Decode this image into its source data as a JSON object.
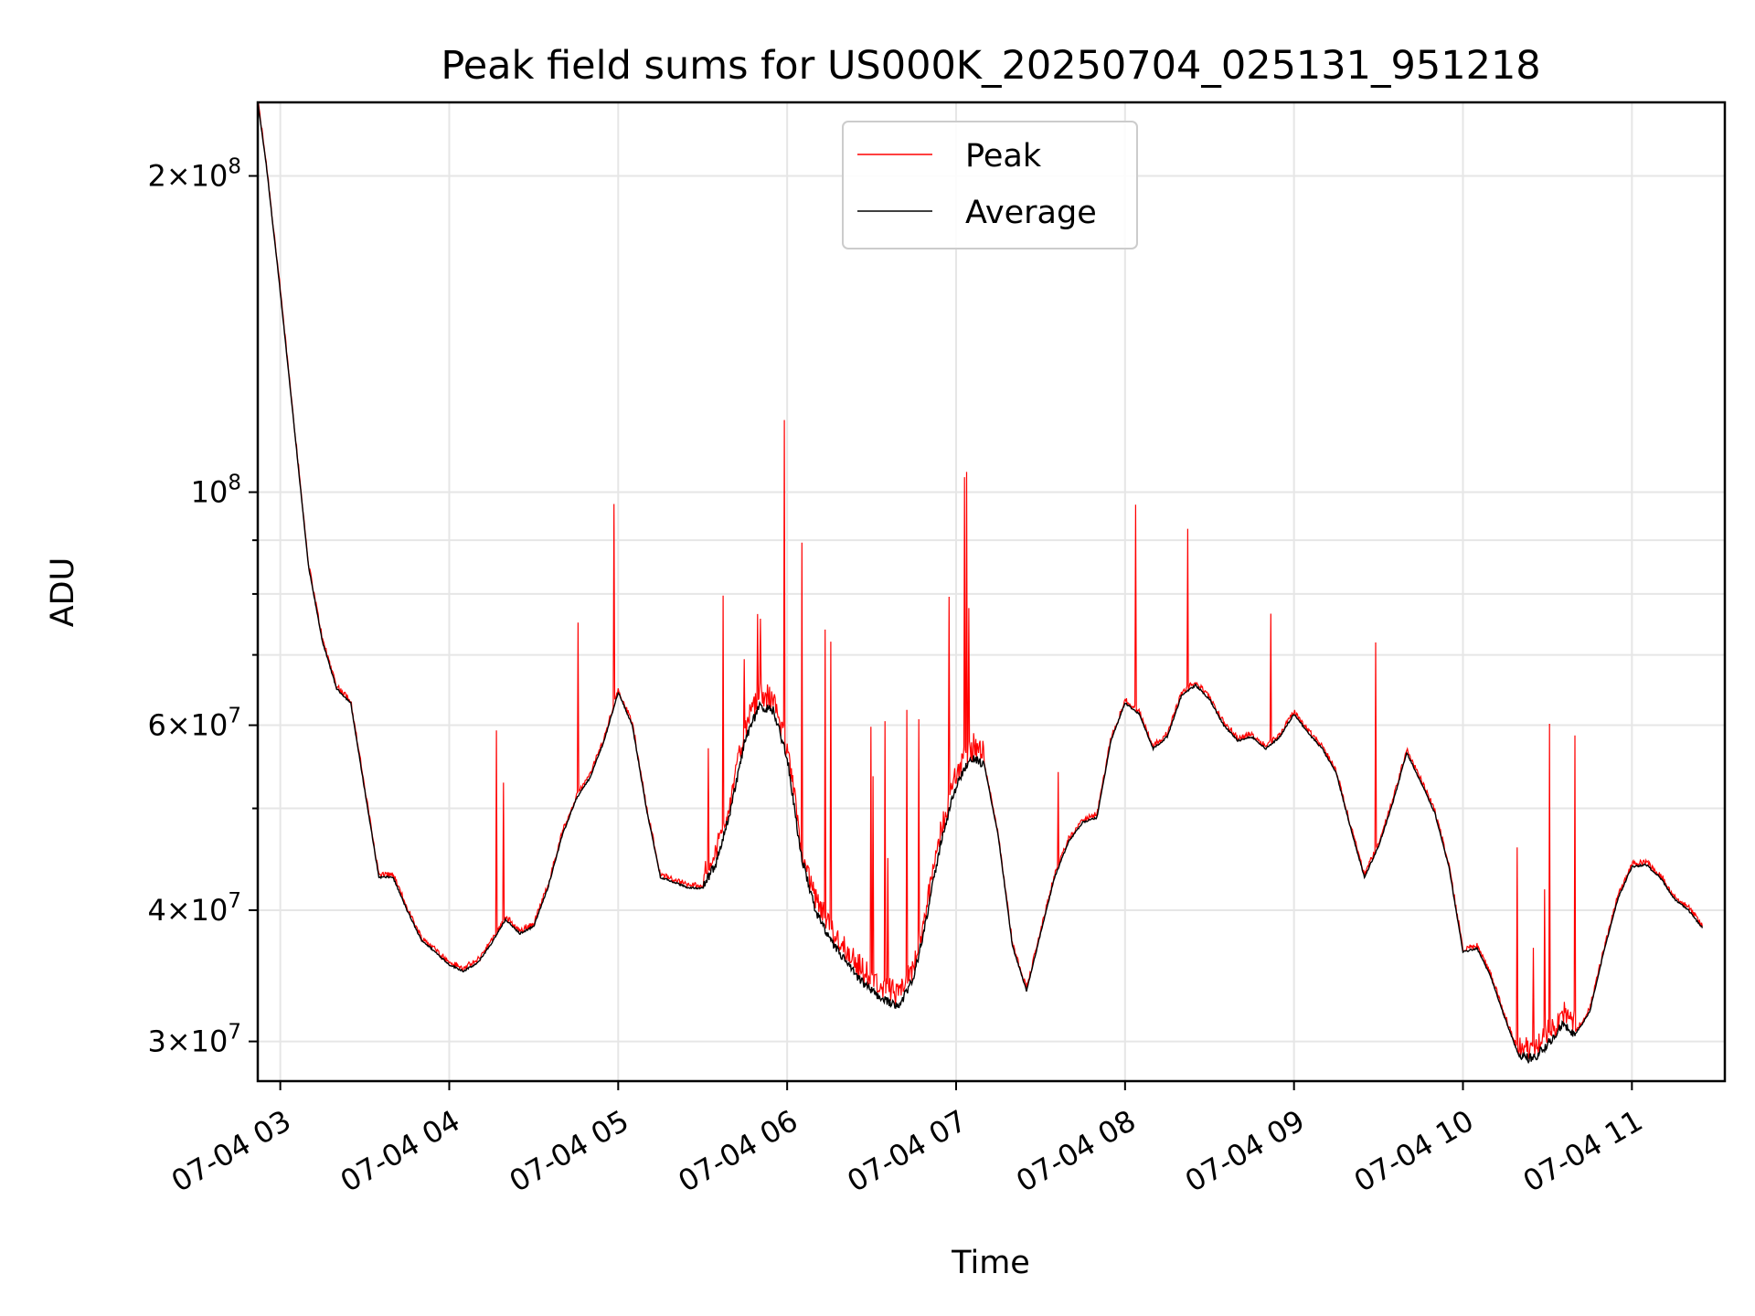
{
  "chart_data": {
    "type": "line",
    "title": "Peak field sums for US000K_20250704_025131_951218",
    "xlabel": "Time",
    "ylabel": "ADU",
    "y_scale": "log",
    "ylim": [
      27500000,
      235000000
    ],
    "x_range": [
      "07-04 02:52",
      "07-04 11:33"
    ],
    "x_ticks": [
      "07-04 03",
      "07-04 04",
      "07-04 05",
      "07-04 06",
      "07-04 07",
      "07-04 08",
      "07-04 09",
      "07-04 10",
      "07-04 11"
    ],
    "y_ticks": [
      {
        "value": 30000000,
        "mant": "3",
        "exp": "7"
      },
      {
        "value": 40000000,
        "mant": "4",
        "exp": "7"
      },
      {
        "value": 60000000,
        "mant": "6",
        "exp": "7"
      },
      {
        "value": 100000000,
        "mant": "",
        "exp": "8"
      },
      {
        "value": 200000000,
        "mant": "2",
        "exp": "8"
      }
    ],
    "grid": true,
    "legend_position": "top-center",
    "series": [
      {
        "name": "Average",
        "color": "#000000",
        "points": [
          [
            "07-04 02:52",
            235000000
          ],
          [
            "07-04 02:55",
            205000000
          ],
          [
            "07-04 03:00",
            155000000
          ],
          [
            "07-04 03:05",
            115000000
          ],
          [
            "07-04 03:10",
            85000000
          ],
          [
            "07-04 03:15",
            72000000
          ],
          [
            "07-04 03:20",
            65000000
          ],
          [
            "07-04 03:25",
            63000000
          ],
          [
            "07-04 03:30",
            52000000
          ],
          [
            "07-04 03:35",
            43000000
          ],
          [
            "07-04 03:40",
            43000000
          ],
          [
            "07-04 03:45",
            40000000
          ],
          [
            "07-04 03:50",
            37500000
          ],
          [
            "07-04 03:55",
            36500000
          ],
          [
            "07-04 04:00",
            35500000
          ],
          [
            "07-04 04:05",
            35000000
          ],
          [
            "07-04 04:10",
            35600000
          ],
          [
            "07-04 04:15",
            37200000
          ],
          [
            "07-04 04:20",
            39200000
          ],
          [
            "07-04 04:25",
            38000000
          ],
          [
            "07-04 04:30",
            38600000
          ],
          [
            "07-04 04:35",
            42000000
          ],
          [
            "07-04 04:40",
            47000000
          ],
          [
            "07-04 04:45",
            51000000
          ],
          [
            "07-04 04:50",
            53500000
          ],
          [
            "07-04 04:55",
            58000000
          ],
          [
            "07-04 05:00",
            64500000
          ],
          [
            "07-04 05:05",
            60000000
          ],
          [
            "07-04 05:10",
            50000000
          ],
          [
            "07-04 05:15",
            43000000
          ],
          [
            "07-04 05:20",
            42500000
          ],
          [
            "07-04 05:25",
            42000000
          ],
          [
            "07-04 05:30",
            42000000
          ],
          [
            "07-04 05:35",
            44500000
          ],
          [
            "07-04 05:40",
            50000000
          ],
          [
            "07-04 05:45",
            58000000
          ],
          [
            "07-04 05:50",
            62500000
          ],
          [
            "07-04 05:55",
            62000000
          ],
          [
            "07-04 06:00",
            56000000
          ],
          [
            "07-04 06:05",
            45000000
          ],
          [
            "07-04 06:10",
            40000000
          ],
          [
            "07-04 06:15",
            37500000
          ],
          [
            "07-04 06:20",
            36000000
          ],
          [
            "07-04 06:25",
            34500000
          ],
          [
            "07-04 06:30",
            33500000
          ],
          [
            "07-04 06:35",
            32800000
          ],
          [
            "07-04 06:40",
            32500000
          ],
          [
            "07-04 06:45",
            34500000
          ],
          [
            "07-04 06:50",
            40000000
          ],
          [
            "07-04 06:55",
            47000000
          ],
          [
            "07-04 07:00",
            52500000
          ],
          [
            "07-04 07:05",
            56000000
          ],
          [
            "07-04 07:10",
            55000000
          ],
          [
            "07-04 07:15",
            47000000
          ],
          [
            "07-04 07:20",
            37000000
          ],
          [
            "07-04 07:25",
            33500000
          ],
          [
            "07-04 07:30",
            38000000
          ],
          [
            "07-04 07:35",
            43000000
          ],
          [
            "07-04 07:40",
            46500000
          ],
          [
            "07-04 07:45",
            48500000
          ],
          [
            "07-04 07:50",
            49000000
          ],
          [
            "07-04 07:55",
            58000000
          ],
          [
            "07-04 08:00",
            63000000
          ],
          [
            "07-04 08:05",
            61500000
          ],
          [
            "07-04 08:10",
            57000000
          ],
          [
            "07-04 08:15",
            58500000
          ],
          [
            "07-04 08:20",
            64000000
          ],
          [
            "07-04 08:25",
            65500000
          ],
          [
            "07-04 08:30",
            63500000
          ],
          [
            "07-04 08:35",
            60000000
          ],
          [
            "07-04 08:40",
            58000000
          ],
          [
            "07-04 08:45",
            58500000
          ],
          [
            "07-04 08:50",
            57000000
          ],
          [
            "07-04 08:55",
            58500000
          ],
          [
            "07-04 09:00",
            61500000
          ],
          [
            "07-04 09:05",
            59000000
          ],
          [
            "07-04 09:10",
            57000000
          ],
          [
            "07-04 09:15",
            54000000
          ],
          [
            "07-04 09:20",
            48000000
          ],
          [
            "07-04 09:25",
            43000000
          ],
          [
            "07-04 09:30",
            46000000
          ],
          [
            "07-04 09:35",
            50500000
          ],
          [
            "07-04 09:40",
            56500000
          ],
          [
            "07-04 09:45",
            53000000
          ],
          [
            "07-04 09:50",
            49500000
          ],
          [
            "07-04 09:55",
            44000000
          ],
          [
            "07-04 10:00",
            36500000
          ],
          [
            "07-04 10:05",
            36800000
          ],
          [
            "07-04 10:10",
            34500000
          ],
          [
            "07-04 10:15",
            31500000
          ],
          [
            "07-04 10:20",
            29000000
          ],
          [
            "07-04 10:25",
            28900000
          ],
          [
            "07-04 10:30",
            29800000
          ],
          [
            "07-04 10:35",
            31100000
          ],
          [
            "07-04 10:40",
            30500000
          ],
          [
            "07-04 10:45",
            32000000
          ],
          [
            "07-04 10:50",
            36500000
          ],
          [
            "07-04 10:55",
            41000000
          ],
          [
            "07-04 11:00",
            44000000
          ],
          [
            "07-04 11:05",
            44200000
          ],
          [
            "07-04 11:10",
            43000000
          ],
          [
            "07-04 11:15",
            41000000
          ],
          [
            "07-04 11:20",
            40000000
          ],
          [
            "07-04 11:25",
            38500000
          ]
        ]
      },
      {
        "name": "Peak",
        "color": "#ff0000"
      }
    ]
  }
}
